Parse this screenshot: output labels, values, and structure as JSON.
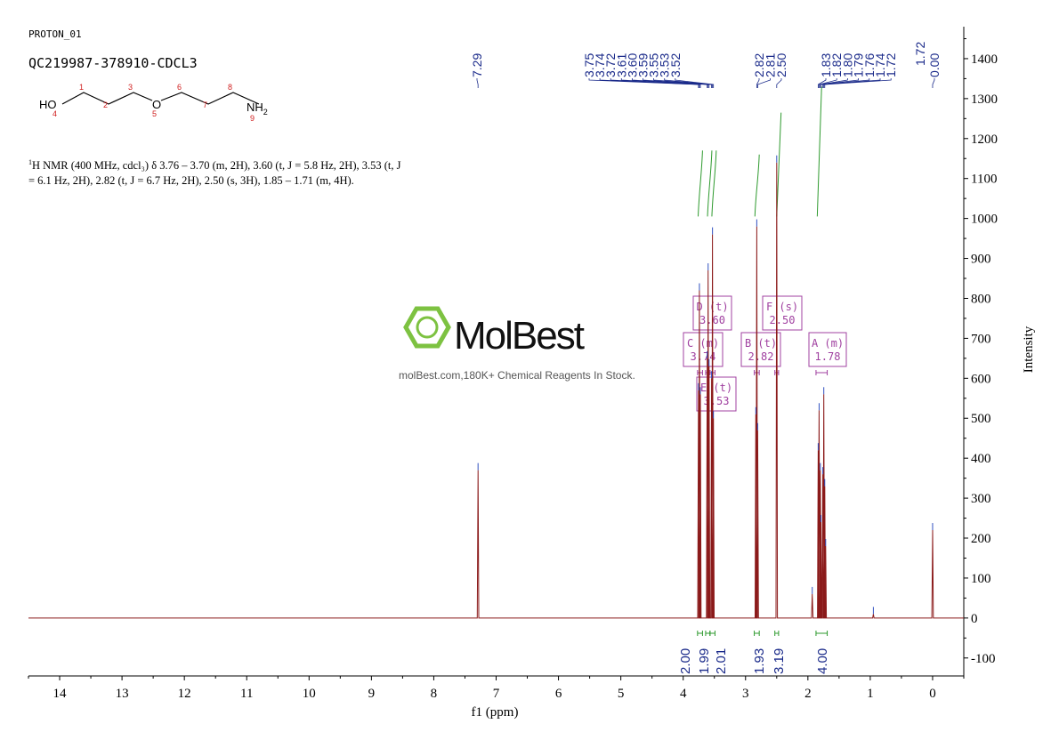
{
  "header": {
    "proton_label": "PROTON_01",
    "sample_name": "QC219987-378910-CDCL3"
  },
  "molecule": {
    "ho": "HO",
    "o": "O",
    "nh": "NH",
    "nh_sub": "2",
    "numbers": [
      "1",
      "2",
      "3",
      "4",
      "5",
      "6",
      "7",
      "8",
      "9"
    ]
  },
  "description": {
    "sup": "1",
    "text": "H NMR (400 MHz, cdcl₃) δ 3.76 – 3.70 (m, 2H), 3.60 (t, J = 5.8 Hz, 2H), 3.53 (t, J = 6.1 Hz, 2H), 2.82 (t, J = 6.7 Hz, 2H), 2.50 (s, 3H), 1.85 – 1.71 (m, 4H)."
  },
  "watermark": {
    "brand": "MolBest",
    "tagline": "molBest.com,180K+ Chemical Reagents In Stock."
  },
  "colors": {
    "spectrum": "#8b1a1a",
    "peak_label": "#1a2a8a",
    "integral_curve": "#2e9a2e",
    "multiplet_box": "#a040a0",
    "logo_green": "#7dc241"
  },
  "chart_data": {
    "type": "line",
    "xlabel": "f1 (ppm)",
    "ylabel": "Intensity",
    "xlim": [
      14.5,
      -0.5
    ],
    "ylim": [
      -145,
      1480
    ],
    "x_ticks": [
      14,
      13,
      12,
      11,
      10,
      9,
      8,
      7,
      6,
      5,
      4,
      3,
      2,
      1,
      0
    ],
    "y_ticks": [
      -100,
      0,
      100,
      200,
      300,
      400,
      500,
      600,
      700,
      800,
      900,
      1000,
      1100,
      1200,
      1300,
      1400
    ],
    "peaks": [
      {
        "ppm": 7.29,
        "height": 370
      },
      {
        "ppm": 3.755,
        "height": 570
      },
      {
        "ppm": 3.74,
        "height": 820
      },
      {
        "ppm": 3.725,
        "height": 560
      },
      {
        "ppm": 3.615,
        "height": 650
      },
      {
        "ppm": 3.6,
        "height": 870
      },
      {
        "ppm": 3.585,
        "height": 630
      },
      {
        "ppm": 3.545,
        "height": 600
      },
      {
        "ppm": 3.53,
        "height": 960
      },
      {
        "ppm": 3.515,
        "height": 500
      },
      {
        "ppm": 2.835,
        "height": 510
      },
      {
        "ppm": 2.82,
        "height": 980
      },
      {
        "ppm": 2.805,
        "height": 470
      },
      {
        "ppm": 2.5,
        "height": 1140
      },
      {
        "ppm": 1.93,
        "height": 60
      },
      {
        "ppm": 1.835,
        "height": 420
      },
      {
        "ppm": 1.82,
        "height": 520
      },
      {
        "ppm": 1.8,
        "height": 370
      },
      {
        "ppm": 1.79,
        "height": 240
      },
      {
        "ppm": 1.76,
        "height": 360
      },
      {
        "ppm": 1.745,
        "height": 560
      },
      {
        "ppm": 1.73,
        "height": 330
      },
      {
        "ppm": 1.715,
        "height": 180
      },
      {
        "ppm": 0.95,
        "height": 10
      },
      {
        "ppm": 0.0,
        "height": 220
      }
    ],
    "peak_labels_left": [
      "7.29"
    ],
    "peak_labels_group1": [
      "3.75",
      "3.74",
      "3.72",
      "3.61",
      "3.60",
      "3.59",
      "3.55",
      "3.53",
      "3.52"
    ],
    "peak_labels_group2": [
      "2.82",
      "2.81",
      "2.50"
    ],
    "peak_labels_group3": [
      "1.83",
      "1.82",
      "1.80",
      "1.79",
      "1.76",
      "1.74",
      "1.72"
    ],
    "peak_labels_right": [
      "0.00"
    ],
    "integrals": [
      {
        "from": 3.77,
        "to": 3.69,
        "value": "2.00"
      },
      {
        "from": 3.64,
        "to": 3.57,
        "value": "1.99"
      },
      {
        "from": 3.57,
        "to": 3.49,
        "value": "2.01"
      },
      {
        "from": 2.86,
        "to": 2.78,
        "value": "1.93"
      },
      {
        "from": 2.53,
        "to": 2.47,
        "value": "3.19"
      },
      {
        "from": 1.87,
        "to": 1.69,
        "value": "4.00"
      }
    ],
    "multiplets": [
      {
        "letter": "D",
        "mult": "(t)",
        "shift": "3.60"
      },
      {
        "letter": "F",
        "mult": "(s)",
        "shift": "2.50"
      },
      {
        "letter": "C",
        "mult": "(m)",
        "shift": "3.74"
      },
      {
        "letter": "B",
        "mult": "(t)",
        "shift": "2.82"
      },
      {
        "letter": "A",
        "mult": "(m)",
        "shift": "1.78"
      },
      {
        "letter": "E",
        "mult": "(t)",
        "shift": "3.53"
      }
    ]
  }
}
